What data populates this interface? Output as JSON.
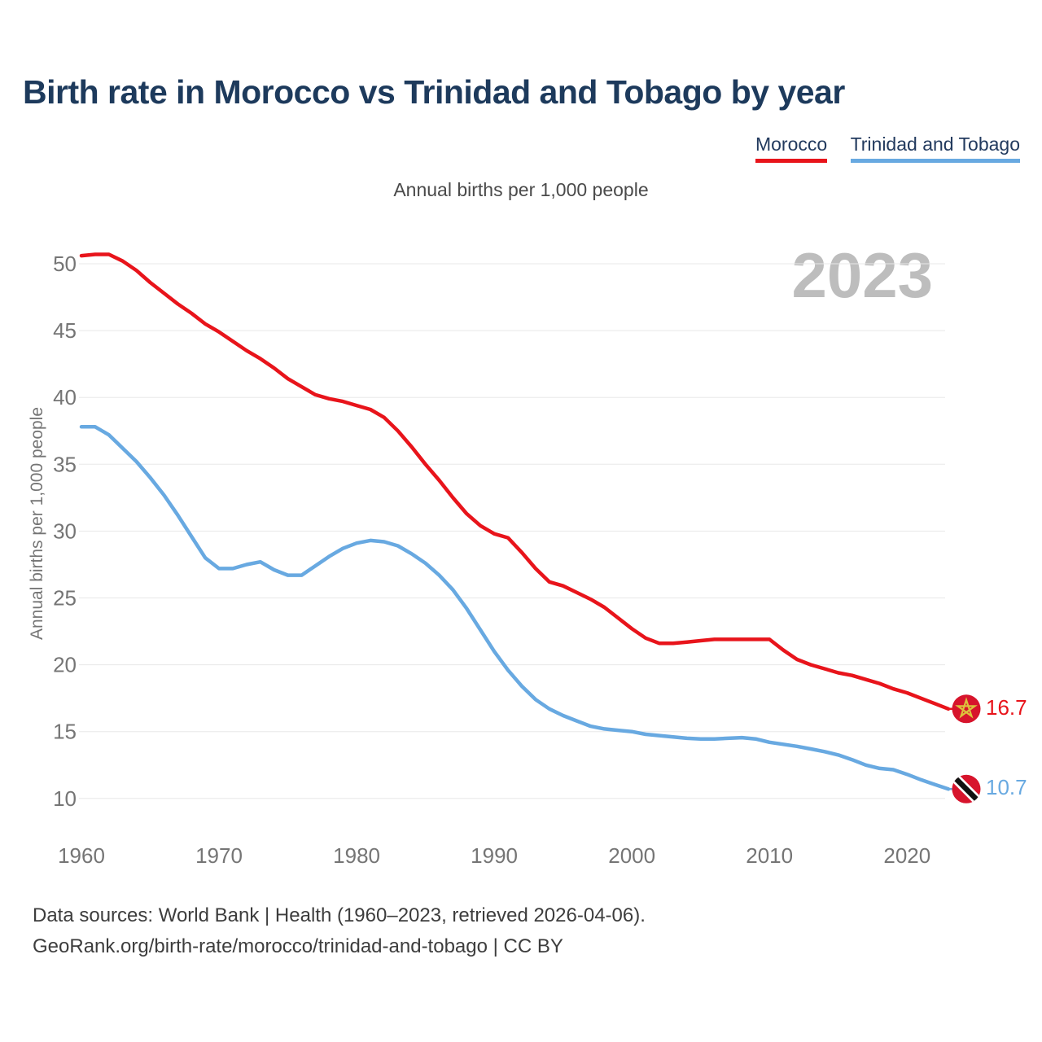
{
  "header": {
    "title": "Birth rate in Morocco vs Trinidad and Tobago by year",
    "subtitle": "Annual births per 1,000 people"
  },
  "legend": {
    "items": [
      {
        "label": "Morocco",
        "color": "#e8141b"
      },
      {
        "label": "Trinidad and Tobago",
        "color": "#68a9e1"
      }
    ]
  },
  "watermark": "2023",
  "footer": {
    "line1": "Data sources: World Bank | Health (1960–2023, retrieved 2026-04-06).",
    "line2": "GeoRank.org/birth-rate/morocco/trinidad-and-tobago | CC BY"
  },
  "colors": {
    "title": "#1d3a5c",
    "axis_text": "#757575",
    "gridline": "#e8e8e8",
    "watermark": "#bdbdbd",
    "footer_text": "#3d3d3d",
    "flag_red": "#d7142c",
    "flag_star_yellow": "#dcc13c",
    "flag_stripe_black": "#111111",
    "flag_stripe_white": "#ffffff"
  },
  "chart_data": {
    "type": "line",
    "title": "Birth rate in Morocco vs Trinidad and Tobago by year",
    "subtitle": "Annual births per 1,000 people",
    "xlabel": "",
    "ylabel": "Annual births per 1,000 people",
    "grid": true,
    "legend_position": "top-right",
    "watermark_year": "2023",
    "xlim": [
      1960,
      2023
    ],
    "ylim": [
      10,
      50
    ],
    "xticks": [
      1960,
      1970,
      1980,
      1990,
      2000,
      2010,
      2020
    ],
    "yticks": [
      10,
      15,
      20,
      25,
      30,
      35,
      40,
      45,
      50
    ],
    "x": [
      1960,
      1961,
      1962,
      1963,
      1964,
      1965,
      1966,
      1967,
      1968,
      1969,
      1970,
      1971,
      1972,
      1973,
      1974,
      1975,
      1976,
      1977,
      1978,
      1979,
      1980,
      1981,
      1982,
      1983,
      1984,
      1985,
      1986,
      1987,
      1988,
      1989,
      1990,
      1991,
      1992,
      1993,
      1994,
      1995,
      1996,
      1997,
      1998,
      1999,
      2000,
      2001,
      2002,
      2003,
      2004,
      2005,
      2006,
      2007,
      2008,
      2009,
      2010,
      2011,
      2012,
      2013,
      2014,
      2015,
      2016,
      2017,
      2018,
      2019,
      2020,
      2021,
      2022,
      2023
    ],
    "series": [
      {
        "name": "Morocco",
        "color": "#e8141b",
        "end_label": "16.7",
        "end_value": 16.7,
        "flag_icon": "morocco-flag-icon",
        "flag_bg": "#d7142c",
        "flag_star_color": "#dcc13c",
        "values": [
          50.6,
          50.7,
          50.7,
          50.2,
          49.5,
          48.6,
          47.8,
          47.0,
          46.3,
          45.5,
          44.9,
          44.2,
          43.5,
          42.9,
          42.2,
          41.4,
          40.8,
          40.2,
          39.9,
          39.7,
          39.4,
          39.1,
          38.5,
          37.5,
          36.3,
          35.0,
          33.8,
          32.5,
          31.3,
          30.4,
          29.8,
          29.5,
          28.4,
          27.2,
          26.2,
          25.9,
          25.4,
          24.9,
          24.3,
          23.5,
          22.7,
          22.0,
          21.6,
          21.6,
          21.7,
          21.8,
          21.9,
          21.9,
          21.9,
          21.9,
          21.9,
          21.1,
          20.4,
          20.0,
          19.7,
          19.4,
          19.2,
          18.9,
          18.6,
          18.2,
          17.9,
          17.5,
          17.1,
          16.7
        ]
      },
      {
        "name": "Trinidad and Tobago",
        "color": "#68a9e1",
        "end_label": "10.7",
        "end_value": 10.7,
        "flag_icon": "trinidad-and-tobago-flag-icon",
        "flag_bg": "#d7142c",
        "flag_stripe_colors": [
          "#ffffff",
          "#111111"
        ],
        "values": [
          37.8,
          37.8,
          37.2,
          36.2,
          35.2,
          34.0,
          32.7,
          31.2,
          29.6,
          28.0,
          27.2,
          27.2,
          27.5,
          27.7,
          27.1,
          26.7,
          26.7,
          27.4,
          28.1,
          28.7,
          29.1,
          29.3,
          29.2,
          28.9,
          28.3,
          27.6,
          26.7,
          25.6,
          24.2,
          22.6,
          21.0,
          19.6,
          18.4,
          17.4,
          16.7,
          16.2,
          15.8,
          15.4,
          15.2,
          15.1,
          15.0,
          14.8,
          14.7,
          14.6,
          14.5,
          14.45,
          14.45,
          14.5,
          14.55,
          14.45,
          14.2,
          14.05,
          13.9,
          13.7,
          13.5,
          13.25,
          12.9,
          12.5,
          12.25,
          12.15,
          11.8,
          11.4,
          11.05,
          10.7
        ]
      }
    ]
  }
}
